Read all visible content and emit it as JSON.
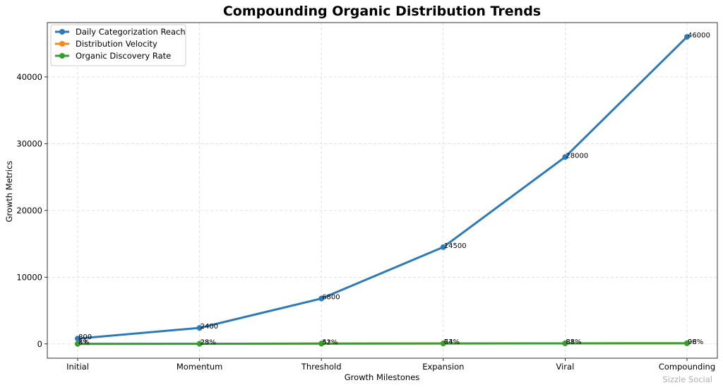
{
  "chart_data": {
    "type": "line",
    "title": "Compounding Organic Distribution Trends",
    "xlabel": "Growth Milestones",
    "ylabel": "Growth Metrics",
    "categories": [
      "Initial",
      "Momentum",
      "Threshold",
      "Expansion",
      "Viral",
      "Compounding"
    ],
    "ylim": [
      -2140,
      48140
    ],
    "yticks": [
      0,
      10000,
      20000,
      30000,
      40000
    ],
    "grid": true,
    "legend_position": "upper-left",
    "series": [
      {
        "name": "Daily Categorization Reach",
        "color": "#2e7ab6",
        "values": [
          800,
          2400,
          6800,
          14500,
          28000,
          46000
        ],
        "labels": [
          "800",
          "2400",
          "6800",
          "14500",
          "28000",
          "46000"
        ]
      },
      {
        "name": "Distribution Velocity",
        "color": "#f5891f",
        "values": [
          12,
          28,
          41,
          73,
          81,
          98
        ],
        "labels": [
          "12",
          "28",
          "41",
          "73",
          "81",
          "98"
        ]
      },
      {
        "name": "Organic Discovery Rate",
        "color": "#34a02c",
        "values": [
          8,
          23,
          52,
          64,
          88,
          96
        ],
        "labels": [
          "8%",
          "23%",
          "52%",
          "64%",
          "88%",
          "96%"
        ]
      }
    ]
  },
  "watermark": "Sizzle Social"
}
